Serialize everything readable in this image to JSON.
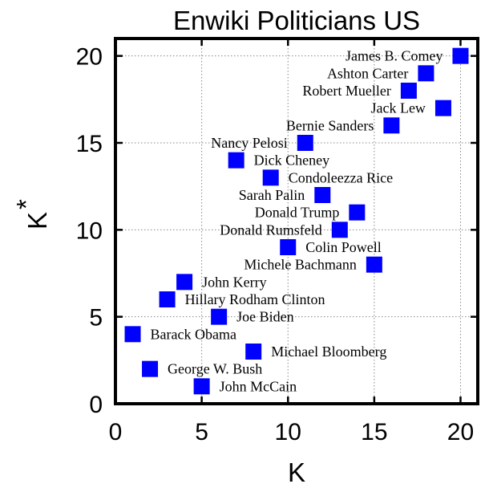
{
  "chart_data": {
    "type": "scatter",
    "title": "Enwiki Politicians US",
    "xlabel": "K",
    "ylabel": "K",
    "ylabel_superscript": "*",
    "xlim": [
      0,
      21
    ],
    "ylim": [
      0,
      21
    ],
    "xticks": [
      0,
      5,
      10,
      15,
      20
    ],
    "yticks": [
      0,
      5,
      10,
      15,
      20
    ],
    "grid": true,
    "marker_color": "#0000ff",
    "points": [
      {
        "label": "James B. Comey",
        "x": 20,
        "y": 20,
        "label_side": "left"
      },
      {
        "label": "Ashton Carter",
        "x": 18,
        "y": 19,
        "label_side": "left"
      },
      {
        "label": "Robert Mueller",
        "x": 17,
        "y": 18,
        "label_side": "left"
      },
      {
        "label": "Jack Lew",
        "x": 19,
        "y": 17,
        "label_side": "left"
      },
      {
        "label": "Bernie Sanders",
        "x": 16,
        "y": 16,
        "label_side": "left"
      },
      {
        "label": "Nancy Pelosi",
        "x": 11,
        "y": 15,
        "label_side": "left"
      },
      {
        "label": "Dick Cheney",
        "x": 7,
        "y": 14,
        "label_side": "right"
      },
      {
        "label": "Condoleezza Rice",
        "x": 9,
        "y": 13,
        "label_side": "right"
      },
      {
        "label": "Sarah Palin",
        "x": 12,
        "y": 12,
        "label_side": "left"
      },
      {
        "label": "Donald Trump",
        "x": 14,
        "y": 11,
        "label_side": "left"
      },
      {
        "label": "Donald Rumsfeld",
        "x": 13,
        "y": 10,
        "label_side": "left"
      },
      {
        "label": "Colin Powell",
        "x": 10,
        "y": 9,
        "label_side": "right"
      },
      {
        "label": "Michele Bachmann",
        "x": 15,
        "y": 8,
        "label_side": "left"
      },
      {
        "label": "John Kerry",
        "x": 4,
        "y": 7,
        "label_side": "right"
      },
      {
        "label": "Hillary Rodham Clinton",
        "x": 3,
        "y": 6,
        "label_side": "right"
      },
      {
        "label": "Joe Biden",
        "x": 6,
        "y": 5,
        "label_side": "right"
      },
      {
        "label": "Barack Obama",
        "x": 1,
        "y": 4,
        "label_side": "right"
      },
      {
        "label": "Michael Bloomberg",
        "x": 8,
        "y": 3,
        "label_side": "right"
      },
      {
        "label": "George W. Bush",
        "x": 2,
        "y": 2,
        "label_side": "right"
      },
      {
        "label": "John McCain",
        "x": 5,
        "y": 1,
        "label_side": "right"
      }
    ]
  }
}
